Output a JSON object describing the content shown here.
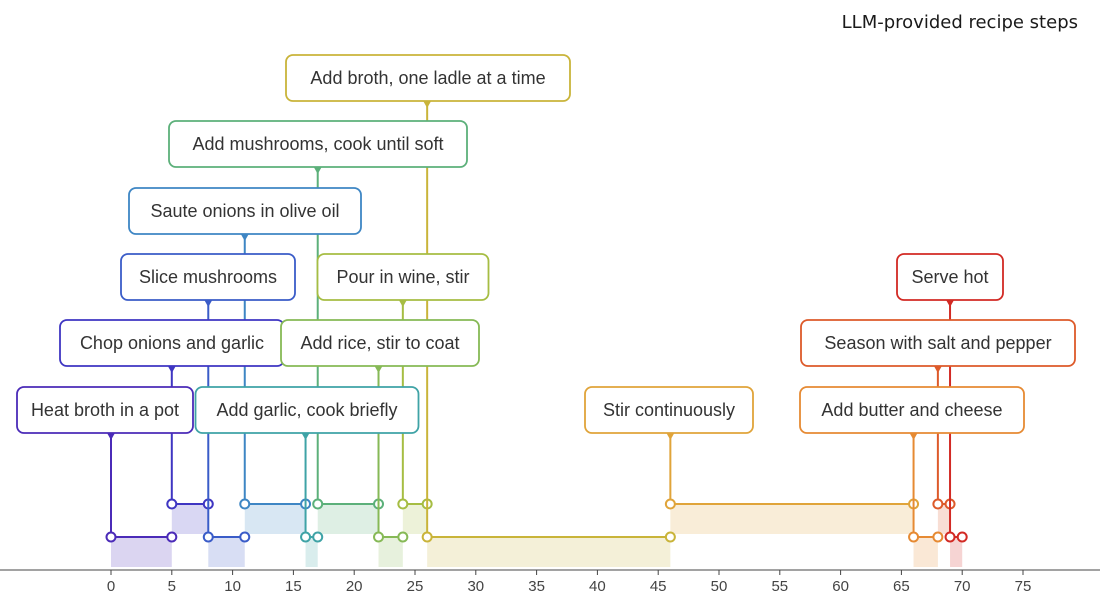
{
  "title": "LLM-provided recipe steps",
  "chart_data": {
    "type": "timeline",
    "title": "LLM-provided recipe steps",
    "xlabel": "",
    "ylabel": "",
    "xlim": [
      -10,
      80
    ],
    "ticks": [
      0,
      5,
      10,
      15,
      20,
      25,
      30,
      35,
      40,
      45,
      50,
      55,
      60,
      65,
      70,
      75
    ],
    "steps": [
      {
        "label": "Heat broth in a pot",
        "start": 0,
        "end": 5,
        "color": "#4B2BB8"
      },
      {
        "label": "Chop onions and garlic",
        "start": 5,
        "end": 8,
        "color": "#3F36C2"
      },
      {
        "label": "Slice mushrooms",
        "start": 8,
        "end": 11,
        "color": "#3A5CC8"
      },
      {
        "label": "Saute onions in olive oil",
        "start": 11,
        "end": 16,
        "color": "#3E86C4"
      },
      {
        "label": "Add garlic, cook briefly",
        "start": 16,
        "end": 17,
        "color": "#3FA3A6"
      },
      {
        "label": "Add mushrooms, cook until soft",
        "start": 17,
        "end": 22,
        "color": "#5CB07A"
      },
      {
        "label": "Add rice, stir to coat",
        "start": 22,
        "end": 24,
        "color": "#86B956"
      },
      {
        "label": "Pour in wine, stir",
        "start": 24,
        "end": 26,
        "color": "#A6BD43"
      },
      {
        "label": "Add broth, one ladle at a time",
        "start": 26,
        "end": 46,
        "color": "#C9B43A"
      },
      {
        "label": "Stir continuously",
        "start": 46,
        "end": 66,
        "color": "#E0A43A"
      },
      {
        "label": "Add butter and cheese",
        "start": 66,
        "end": 68,
        "color": "#E68A33"
      },
      {
        "label": "Season with salt and pepper",
        "start": 68,
        "end": 69,
        "color": "#DD5A2A"
      },
      {
        "label": "Serve hot",
        "start": 69,
        "end": 70,
        "color": "#D22A24"
      }
    ]
  }
}
